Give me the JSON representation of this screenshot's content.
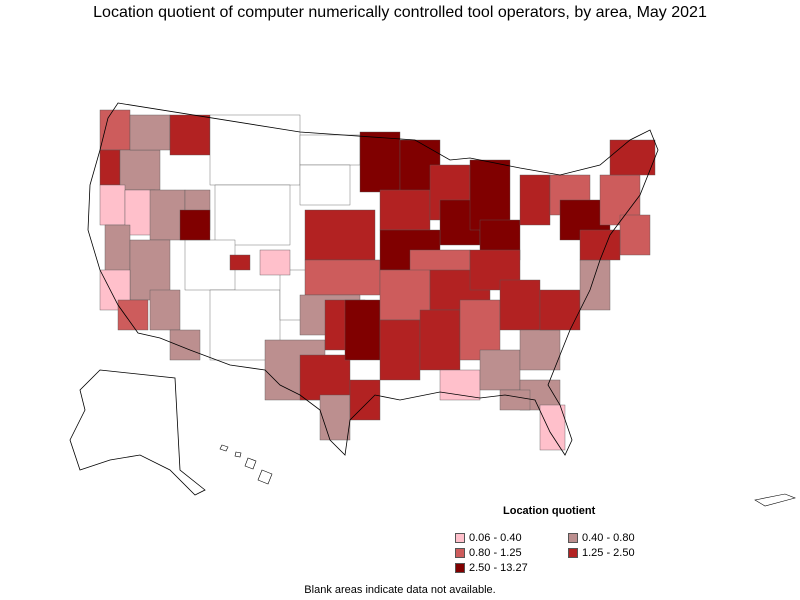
{
  "title": "Location quotient of computer numerically controlled tool operators, by area, May 2021",
  "legend": {
    "title": "Location quotient",
    "items": [
      {
        "label": "0.06 - 0.40",
        "color": "#ffc0cb"
      },
      {
        "label": "0.40 - 0.80",
        "color": "#bc8f8f"
      },
      {
        "label": "0.80 - 1.25",
        "color": "#cd5c5c"
      },
      {
        "label": "1.25 - 2.50",
        "color": "#b22222"
      },
      {
        "label": "2.50 - 13.27",
        "color": "#800000"
      }
    ]
  },
  "note": "Blank areas indicate data not available.",
  "colors": {
    "no_data": "#ffffff",
    "border": "#000000"
  }
}
